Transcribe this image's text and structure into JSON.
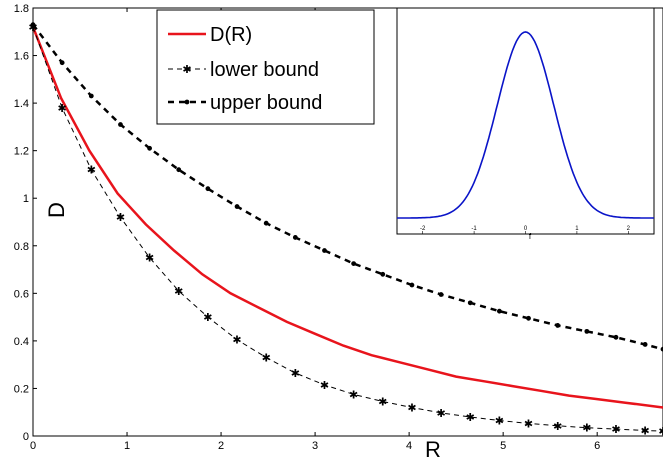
{
  "chart_data": [
    {
      "type": "line",
      "title": "",
      "xlabel": "R",
      "ylabel": "D",
      "xlim": [
        0,
        6.7
      ],
      "ylim": [
        0,
        1.8
      ],
      "xticks": [
        0,
        1,
        2,
        3,
        4,
        5,
        6
      ],
      "xtick_labels": [
        "0",
        "1",
        "2",
        "3",
        "4",
        "5",
        "6"
      ],
      "yticks": [
        0,
        0.2,
        0.4,
        0.6,
        0.8,
        1.0,
        1.2,
        1.4,
        1.6,
        1.8
      ],
      "ytick_labels": [
        "0",
        "0.2",
        "0.4",
        "0.6",
        "0.8",
        "1",
        "1.2",
        "1.4",
        "1.6",
        "1.8"
      ],
      "grid": false,
      "legend_position": "top-center",
      "series": [
        {
          "name": "D(R)",
          "color": "#e8141c",
          "style": "solid",
          "x": [
            0,
            0.3,
            0.6,
            0.9,
            1.2,
            1.5,
            1.8,
            2.1,
            2.4,
            2.7,
            3.0,
            3.3,
            3.6,
            3.9,
            4.2,
            4.5,
            4.8,
            5.1,
            5.4,
            5.7,
            6.0,
            6.3,
            6.7
          ],
          "y": [
            1.72,
            1.42,
            1.2,
            1.02,
            0.89,
            0.78,
            0.68,
            0.6,
            0.54,
            0.48,
            0.43,
            0.38,
            0.34,
            0.31,
            0.28,
            0.25,
            0.23,
            0.21,
            0.19,
            0.17,
            0.155,
            0.14,
            0.12
          ]
        },
        {
          "name": "lower bound",
          "color": "#000000",
          "style": "dashed-star",
          "x": [
            0,
            0.31,
            0.62,
            0.93,
            1.24,
            1.55,
            1.86,
            2.17,
            2.48,
            2.79,
            3.1,
            3.41,
            3.72,
            4.03,
            4.34,
            4.65,
            4.96,
            5.27,
            5.58,
            5.89,
            6.2,
            6.51,
            6.7
          ],
          "y": [
            1.72,
            1.38,
            1.12,
            0.92,
            0.75,
            0.61,
            0.5,
            0.405,
            0.33,
            0.265,
            0.215,
            0.175,
            0.145,
            0.12,
            0.097,
            0.08,
            0.065,
            0.053,
            0.043,
            0.035,
            0.029,
            0.023,
            0.02
          ]
        },
        {
          "name": "upper bound",
          "color": "#000000",
          "style": "dashed-dot",
          "x": [
            0,
            0.31,
            0.62,
            0.93,
            1.24,
            1.55,
            1.86,
            2.17,
            2.48,
            2.79,
            3.1,
            3.41,
            3.72,
            4.03,
            4.34,
            4.65,
            4.96,
            5.27,
            5.58,
            5.89,
            6.2,
            6.51,
            6.7
          ],
          "y": [
            1.73,
            1.57,
            1.43,
            1.31,
            1.21,
            1.12,
            1.04,
            0.965,
            0.895,
            0.835,
            0.78,
            0.725,
            0.68,
            0.635,
            0.595,
            0.56,
            0.525,
            0.495,
            0.465,
            0.44,
            0.415,
            0.385,
            0.365
          ]
        }
      ]
    },
    {
      "type": "line",
      "title": "",
      "xlabel": "f",
      "ylabel": "",
      "xlim": [
        -2.5,
        2.5
      ],
      "ylim": [
        0,
        1
      ],
      "xticks": [
        -2,
        -1,
        0,
        1,
        2
      ],
      "xtick_labels": [
        "-2",
        "-1",
        "0",
        "1",
        "2"
      ],
      "series": [
        {
          "name": "",
          "color": "#0a14c8",
          "style": "solid",
          "function": "gaussian",
          "mean": 0,
          "sigma": 0.55,
          "peak": 1
        }
      ]
    }
  ]
}
